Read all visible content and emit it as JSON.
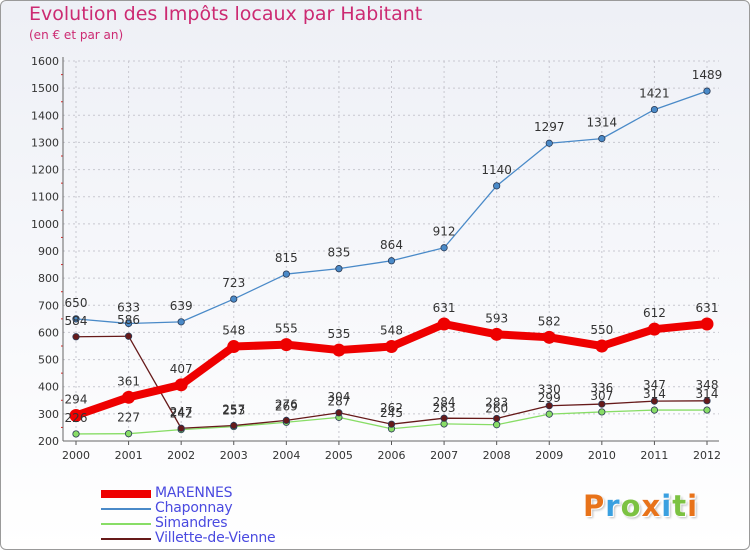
{
  "chart_data": {
    "type": "line",
    "title": "Evolution des Impôts locaux par Habitant",
    "subtitle": "(en € et par an)",
    "xlabel": "",
    "ylabel": "",
    "categories": [
      "2000",
      "2001",
      "2002",
      "2003",
      "2004",
      "2005",
      "2006",
      "2007",
      "2008",
      "2009",
      "2010",
      "2011",
      "2012"
    ],
    "ylim": [
      200,
      1600
    ],
    "yticks": [
      200,
      300,
      400,
      500,
      600,
      700,
      800,
      900,
      1000,
      1100,
      1200,
      1300,
      1400,
      1500,
      1600
    ],
    "ytick_labels": [
      "200",
      "300",
      "400",
      "500",
      "600",
      "700",
      "800",
      "900",
      "1000",
      "1100",
      "1200",
      "1300",
      "1400",
      "1500",
      "1600"
    ],
    "grid": true,
    "legend_position": "bottom-left",
    "series": [
      {
        "name": "MARENNES",
        "color": "#ee0000",
        "values": [
          294,
          361,
          407,
          548,
          555,
          535,
          548,
          631,
          593,
          582,
          550,
          612,
          631
        ],
        "labels": [
          "294",
          "361",
          "407",
          "548",
          "555",
          "535",
          "548",
          "631",
          "593",
          "582",
          "550",
          "612",
          "631"
        ]
      },
      {
        "name": "Chaponnay",
        "color": "#4a8ac8",
        "values": [
          650,
          633,
          639,
          723,
          815,
          835,
          864,
          912,
          1140,
          1297,
          1314,
          1421,
          1489
        ],
        "labels": [
          "650",
          "633",
          "639",
          "723",
          "815",
          "835",
          "864",
          "912",
          "1140",
          "1297",
          "1314",
          "1421",
          "1489"
        ]
      },
      {
        "name": "Simandres",
        "color": "#88dd66",
        "values": [
          226,
          227,
          242,
          253,
          269,
          287,
          245,
          263,
          260,
          299,
          307,
          314,
          314
        ],
        "labels": [
          "226",
          "227",
          "242",
          "253",
          "269",
          "287",
          "245",
          "263",
          "260",
          "299",
          "307",
          "314",
          "314"
        ]
      },
      {
        "name": "Villette-de-Vienne",
        "color": "#661a1a",
        "values": [
          584,
          586,
          247,
          257,
          276,
          304,
          262,
          284,
          283,
          330,
          336,
          347,
          348
        ],
        "labels": [
          "584",
          "586",
          "247",
          "257",
          "276",
          "304",
          "262",
          "284",
          "283",
          "330",
          "336",
          "347",
          "348"
        ]
      }
    ]
  },
  "logo": {
    "text": "Proxiti",
    "letters": [
      {
        "ch": "P",
        "color": "#e8731a"
      },
      {
        "ch": "r",
        "color": "#3aa0e0"
      },
      {
        "ch": "o",
        "color": "#7cc242"
      },
      {
        "ch": "x",
        "color": "#e8731a"
      },
      {
        "ch": "i",
        "color": "#3aa0e0"
      },
      {
        "ch": "t",
        "color": "#7cc242"
      },
      {
        "ch": "i",
        "color": "#e8731a"
      }
    ]
  }
}
